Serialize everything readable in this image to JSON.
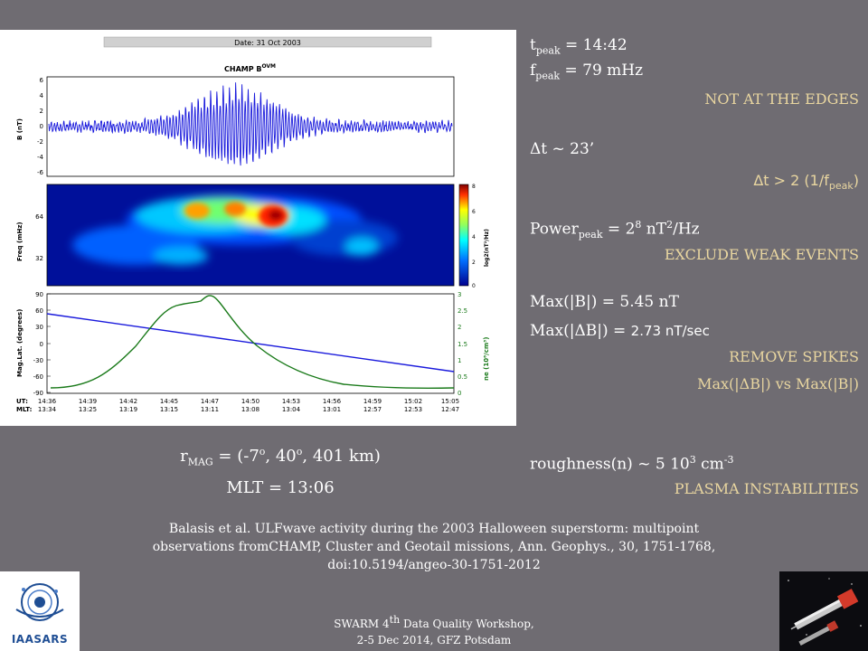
{
  "figure": {
    "date_label": "Date: 31 Oct 2003",
    "title_main": "CHAMP B",
    "title_sup": "OVM",
    "panel1": {
      "ylabel": "B (nT)",
      "yticks": [
        "6",
        "4",
        "2",
        "0",
        "-2",
        "-4",
        "-6"
      ]
    },
    "panel2": {
      "ylabel": "Freq (mHz)",
      "yticks": [
        "64",
        "32"
      ],
      "cbar_ticks": [
        "8",
        "6",
        "4",
        "2",
        "0"
      ],
      "cbar_label": "log2(nT²/Hz)"
    },
    "panel3": {
      "ylabel_left": "Mag.Lat. (degrees)",
      "yticks_left": [
        "90",
        "60",
        "30",
        "0",
        "-30",
        "-60",
        "-90"
      ],
      "yticks_right": [
        "3",
        "2.5",
        "2",
        "1.5",
        "1",
        "0.5",
        "0"
      ],
      "ylabel_right": "ne (10⁶/cm³)"
    },
    "xaxis": {
      "ut_label": "UT:",
      "mlt_label": "MLT:",
      "ut": [
        "14:36",
        "14:39",
        "14:42",
        "14:45",
        "14:47",
        "14:50",
        "14:53",
        "14:56",
        "14:59",
        "15:02",
        "15:05"
      ],
      "mlt": [
        "13:34",
        "13:25",
        "13:19",
        "13:15",
        "13:11",
        "13:08",
        "13:04",
        "13:01",
        "12:57",
        "12:53",
        "12:47"
      ]
    }
  },
  "right_panel": {
    "tpeak_a": "t",
    "tpeak_sub": "peak",
    "tpeak_b": " = 14:42",
    "fpeak_a": "f",
    "fpeak_sub": "peak",
    "fpeak_b": " = 79 mHz",
    "not_edges": "NOT AT THE EDGES",
    "dt_line": "Δt ~ 23’",
    "dt_cond_a": "Δt > 2 (1/f",
    "dt_cond_sub": "peak",
    "dt_cond_b": ")",
    "power_a": "Power",
    "power_sub": "peak",
    "power_b": " = 2",
    "power_sup": "8",
    "power_c": " nT",
    "power_sup2": "2",
    "power_d": "/Hz",
    "exclude": "EXCLUDE WEAK EVENTS",
    "maxb": "Max(|B|) = 5.45 nT",
    "maxdb_a": "Max(|ΔB|) = ",
    "maxdb_b": "2.73 nT/sec",
    "remove": "REMOVE SPIKES",
    "vs": "Max(|ΔB|)  vs Max(|B|)",
    "rough_a": "roughness(n) ~ 5 10",
    "rough_sup": "3",
    "rough_b": "  cm",
    "rough_sup2": "-3",
    "plasma": "PLASMA INSTABILITIES"
  },
  "left_info": {
    "r_a": "r",
    "r_sub": "MAG",
    "r_b": " = (-7",
    "r_sup1": "o",
    "r_c": ", 40",
    "r_sup2": "o",
    "r_d": ", 401 km)",
    "mlt": "MLT = 13:06"
  },
  "reference": {
    "line1": "Balasis et al. ULFwave activity during the 2003 Halloween superstorm: multipoint",
    "line2": "observations fromCHAMP, Cluster and Geotail missions, Ann. Geophys., 30, 1751-1768,",
    "line3": "doi:10.5194/angeo-30-1751-2012"
  },
  "footer": {
    "line1_a": "SWARM 4",
    "line1_sup": "th",
    "line1_b": " Data Quality Workshop,",
    "line2": "2-5 Dec 2014, GFZ Potsdam"
  },
  "logo": {
    "text": "IAASARS"
  },
  "colors": {
    "background": "#6f6c72",
    "accent": "#e9d6a0",
    "waveform": "#1a1adc",
    "density": "#1a7a1a"
  }
}
